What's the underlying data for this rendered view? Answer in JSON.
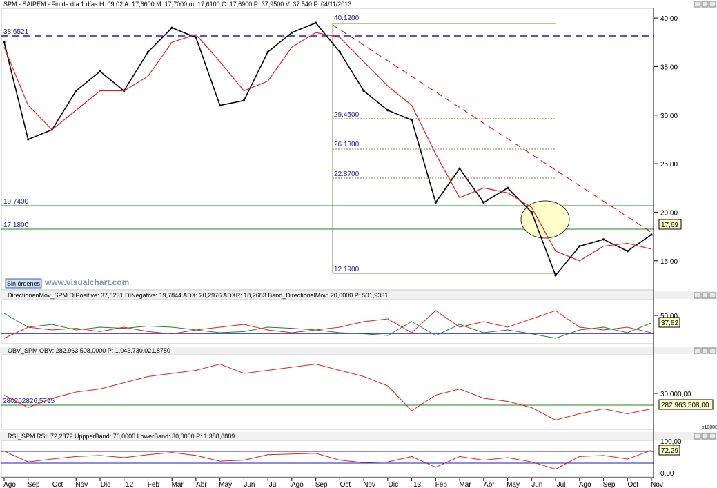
{
  "panels": {
    "price": {
      "header": "SPM - SAIPEM - Fin de día 1 días H: 09:02  A: 17,6600  M: 17,7000  m: 17,6100  C: 17,6900  P: 37,9500  V: 37.540  F: 04/11/2013",
      "y_ticks": [
        "40,00",
        "35,00",
        "30,00",
        "25,00",
        "20,00",
        "15,00"
      ],
      "last_value": "17,69",
      "levels": {
        "high_dashed": "38.6521",
        "support_1": "19.7400",
        "support_2": "17.1800"
      },
      "fibo_labels": [
        "40.1200",
        "29.4500",
        "26.1300",
        "22.8700",
        "12.1900"
      ],
      "orders_button": "Sin órdenes",
      "watermark": "www.visualchart.com"
    },
    "dmi": {
      "header": "DirectionanMov_SPM  DIPositive: 37,8231  DINegative: 19,7844  ADX: 20,2976  ADXR: 18,2683  Band_DirectionalMov: 20,0000  P: 501,9331",
      "y_ticks": [
        "50,00"
      ],
      "last_value": "37,82"
    },
    "obv": {
      "header": "OBV_SPM  OBV: 282.963.508,0000  P: 1.043.730.021,8750",
      "y_ticks": [
        "30.000,00"
      ],
      "level_label": "280202826.5795",
      "last_value": "282.963.508,00",
      "scale_note": "x10000"
    },
    "rsi": {
      "header": "RSI_SPM  RSI: 72,2872  UppperBand: 70,0000  LowerBand: 30,0000  P: 1.388,8889",
      "y_ticks": [
        "100,00",
        "0,00"
      ],
      "last_value": "72,29"
    }
  },
  "x_axis": {
    "labels": [
      "Ago",
      "Sep",
      "Oct",
      "Nov",
      "Dic",
      "12",
      "Feb",
      "Mar",
      "Abr",
      "May",
      "Jun",
      "Jul",
      "Ago",
      "Sep",
      "Oct",
      "Nov",
      "Dic",
      "13",
      "Feb",
      "Mar",
      "Abr",
      "May",
      "Jun",
      "Jul",
      "Ago",
      "Sep",
      "Oct",
      "Nov"
    ]
  },
  "chart_data": {
    "type": "line",
    "title": "SPM - SAIPEM",
    "x": [
      "2011-08",
      "2011-09",
      "2011-10",
      "2011-11",
      "2011-12",
      "2012-01",
      "2012-02",
      "2012-03",
      "2012-04",
      "2012-05",
      "2012-06",
      "2012-07",
      "2012-08",
      "2012-09",
      "2012-10",
      "2012-11",
      "2012-12",
      "2013-01",
      "2013-02",
      "2013-03",
      "2013-04",
      "2013-05",
      "2013-06",
      "2013-07",
      "2013-08",
      "2013-09",
      "2013-10",
      "2013-11"
    ],
    "ylim": [
      12,
      41
    ],
    "series": [
      {
        "values": [
          37.5,
          27.5,
          28.5,
          32.5,
          34.5,
          32.5,
          36.5,
          39.0,
          38.0,
          31.0,
          31.5,
          36.5,
          38.5,
          39.5,
          36.5,
          32.5,
          30.5,
          29.5,
          21.0,
          24.5,
          21.0,
          22.5,
          20.0,
          13.5,
          16.5,
          17.2,
          16.0,
          17.69
        ]
      },
      {
        "values": [
          37.0,
          31.0,
          28.5,
          30.5,
          32.5,
          32.5,
          34.0,
          37.5,
          38.3,
          35.5,
          32.5,
          33.5,
          37.0,
          38.5,
          38.0,
          35.5,
          33.0,
          31.0,
          26.0,
          21.5,
          22.5,
          22.0,
          20.5,
          16.0,
          15.0,
          16.5,
          16.8,
          16.2
        ]
      }
    ],
    "dmi": {
      "ylim": [
        0,
        80
      ],
      "series": [
        {
          "values": [
            55,
            30,
            35,
            25,
            30,
            28,
            32,
            30,
            25,
            20,
            22,
            30,
            28,
            25,
            20,
            18,
            15,
            40,
            15,
            35,
            20,
            25,
            18,
            10,
            25,
            30,
            20,
            37.82
          ]
        },
        {
          "values": [
            10,
            30,
            25,
            28,
            22,
            30,
            22,
            18,
            25,
            30,
            35,
            25,
            20,
            25,
            30,
            40,
            45,
            20,
            60,
            30,
            40,
            30,
            45,
            60,
            30,
            25,
            30,
            19.78
          ]
        }
      ],
      "band": 20
    },
    "obv": {
      "series": [
        {
          "values": [
            30.5,
            28.5,
            30.0,
            31.0,
            31.5,
            32.5,
            33.5,
            34.0,
            34.5,
            35.5,
            34.0,
            34.5,
            35.0,
            35.5,
            34.5,
            33.5,
            32.0,
            28.0,
            30.5,
            31.5,
            30.0,
            29.5,
            28.5,
            26.5,
            27.5,
            28.3,
            27.5,
            28.3
          ]
        }
      ],
      "level": 28.02
    },
    "rsi": {
      "ylim": [
        0,
        100
      ],
      "upper_band": 70,
      "lower_band": 30,
      "series": [
        {
          "values": [
            70,
            40,
            48,
            55,
            58,
            52,
            60,
            66,
            58,
            42,
            45,
            60,
            62,
            64,
            45,
            38,
            40,
            55,
            25,
            55,
            45,
            52,
            40,
            20,
            55,
            58,
            48,
            72.29
          ]
        }
      ]
    },
    "colors": {
      "price_candles": "#000000",
      "moving_average": "#e02020",
      "resistance": "#1a1ac8",
      "support": "#208020",
      "trendline": "#e02020",
      "fibo": "#808040",
      "di_positive": "#208020",
      "di_negative": "#e02020",
      "adx": "#b0b0b0",
      "band": "#1a1ac8"
    }
  }
}
